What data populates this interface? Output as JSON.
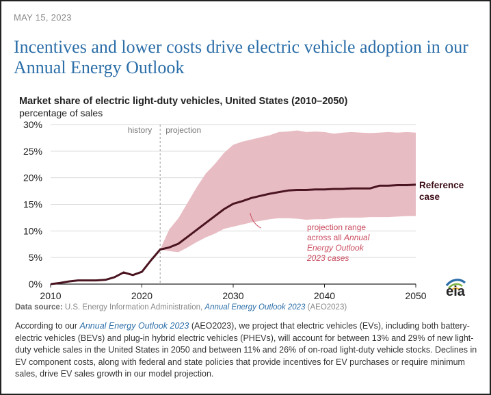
{
  "header": {
    "date": "MAY 15, 2023",
    "headline": "Incentives and lower costs drive electric vehicle adoption in our Annual Energy Outlook"
  },
  "chart_data": {
    "type": "area",
    "title": "Market share of electric light-duty vehicles, United States (2010–2050)",
    "ylabel": "percentage of sales",
    "xlabel": "",
    "xlim": [
      2010,
      2050
    ],
    "ylim": [
      0,
      30
    ],
    "xticks": [
      2010,
      2020,
      2030,
      2040,
      2050
    ],
    "yticks": [
      0,
      5,
      10,
      15,
      20,
      25,
      30
    ],
    "ytick_labels": [
      "0%",
      "5%",
      "10%",
      "15%",
      "20%",
      "25%",
      "30%"
    ],
    "phase_divider_x": 2022,
    "phase_labels": {
      "history": "history",
      "projection": "projection"
    },
    "series": [
      {
        "name": "Reference case",
        "label_lines": [
          "Reference",
          "case"
        ],
        "color": "#4a1420",
        "x": [
          2010,
          2011,
          2012,
          2013,
          2014,
          2015,
          2016,
          2017,
          2018,
          2019,
          2020,
          2021,
          2022,
          2023,
          2024,
          2025,
          2026,
          2027,
          2028,
          2029,
          2030,
          2031,
          2032,
          2033,
          2034,
          2035,
          2036,
          2037,
          2038,
          2039,
          2040,
          2041,
          2042,
          2043,
          2044,
          2045,
          2046,
          2047,
          2048,
          2049,
          2050
        ],
        "values": [
          0.0,
          0.2,
          0.5,
          0.7,
          0.7,
          0.7,
          0.8,
          1.3,
          2.2,
          1.7,
          2.3,
          4.5,
          6.5,
          6.9,
          7.6,
          8.9,
          10.2,
          11.5,
          12.8,
          14.1,
          15.1,
          15.6,
          16.2,
          16.6,
          17.0,
          17.3,
          17.6,
          17.7,
          17.7,
          17.8,
          17.8,
          17.9,
          17.9,
          18.0,
          18.0,
          18.0,
          18.5,
          18.5,
          18.6,
          18.6,
          18.7
        ]
      }
    ],
    "range": {
      "name": "projection range across all Annual Energy Outlook 2023 cases",
      "label_lines": [
        "projection range",
        "across all ",
        "Annual",
        "Energy Outlook",
        "2023 cases"
      ],
      "color": "#e8bcc3",
      "x": [
        2022,
        2023,
        2024,
        2025,
        2026,
        2027,
        2028,
        2029,
        2030,
        2031,
        2032,
        2033,
        2034,
        2035,
        2036,
        2037,
        2038,
        2039,
        2040,
        2041,
        2042,
        2043,
        2044,
        2045,
        2046,
        2047,
        2048,
        2049,
        2050
      ],
      "upper": [
        6.5,
        10.3,
        12.4,
        15.3,
        18.2,
        20.8,
        22.6,
        24.7,
        26.2,
        26.8,
        27.2,
        27.6,
        28.0,
        28.6,
        28.7,
        28.9,
        28.6,
        28.7,
        28.6,
        28.3,
        28.5,
        28.6,
        28.5,
        28.4,
        28.5,
        28.6,
        28.5,
        28.6,
        28.5
      ],
      "lower": [
        6.5,
        6.2,
        6.0,
        6.9,
        7.9,
        8.8,
        9.5,
        10.4,
        10.8,
        11.2,
        11.6,
        11.9,
        12.2,
        12.4,
        12.4,
        12.3,
        12.1,
        12.2,
        12.2,
        12.4,
        12.5,
        12.5,
        12.5,
        12.6,
        12.6,
        12.6,
        12.7,
        12.8,
        12.8
      ]
    }
  },
  "source": {
    "label": "Data source:",
    "text_before": " U.S. Energy Information Administration, ",
    "link": "Annual Energy Outlook 2023",
    "text_after": " (AEO2023)"
  },
  "logo": {
    "text": "eia"
  },
  "description": {
    "before": "According to our ",
    "link": "Annual Energy Outlook 2023",
    "after": " (AEO2023), we project that electric vehicles (EVs), including both battery-electric vehicles (BEVs) and plug-in hybrid electric vehicles (PHEVs), will account for between 13% and 29% of new light-duty vehicle sales in the United States in 2050 and between 11% and 26% of on-road light-duty vehicle stocks. Declines in EV component costs, along with federal and state policies that provide incentives for EV purchases or require minimum sales, drive EV sales growth in our model projection."
  }
}
